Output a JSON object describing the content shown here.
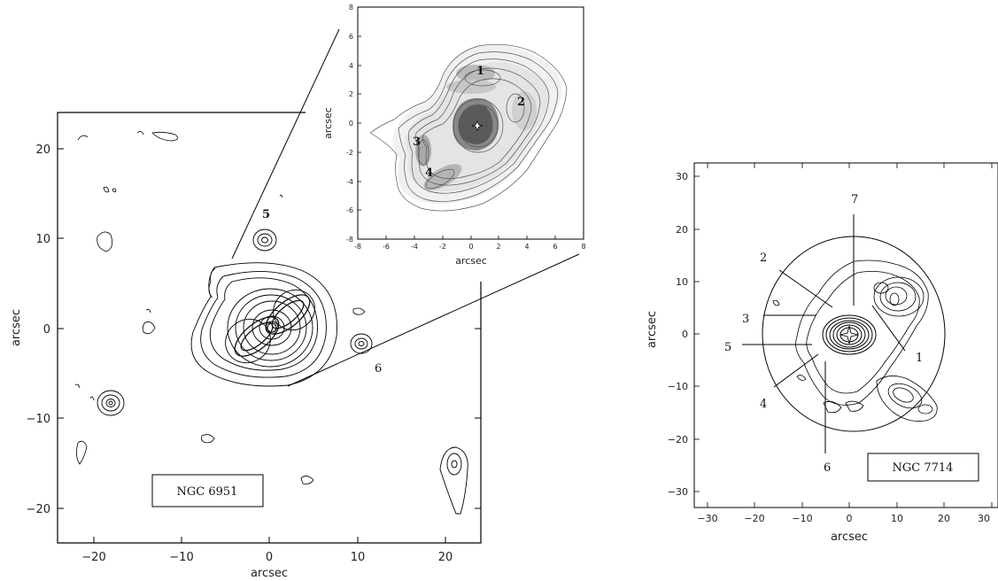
{
  "left_panel": {
    "name_box": "NGC 6951",
    "xlabel": "arcsec",
    "ylabel": "arcsec",
    "x_ticks": [
      "−20",
      "−10",
      "0",
      "10",
      "20"
    ],
    "y_ticks": [
      "20",
      "10",
      "0",
      "−10",
      "−20"
    ],
    "feature_labels": [
      "5",
      "6"
    ]
  },
  "inset_panel": {
    "xlabel": "arcsec",
    "ylabel": "arcsec",
    "x_ticks": [
      "-8",
      "-6",
      "-4",
      "-2",
      "0",
      "2",
      "4",
      "6",
      "8"
    ],
    "y_ticks": [
      "8",
      "6",
      "4",
      "2",
      "0",
      "-2",
      "-4",
      "-6",
      "-8"
    ],
    "feature_labels": [
      "1",
      "2",
      "3",
      "4"
    ]
  },
  "right_panel": {
    "name_box": "NGC 7714",
    "xlabel": "arcsec",
    "ylabel": "arcsec",
    "x_ticks": [
      "−30",
      "−20",
      "−10",
      "0",
      "10",
      "20",
      "30"
    ],
    "y_ticks": [
      "30",
      "20",
      "10",
      "0",
      "−10",
      "−20",
      "−30"
    ],
    "feature_labels": [
      "1",
      "2",
      "3",
      "4",
      "5",
      "6",
      "7"
    ]
  }
}
